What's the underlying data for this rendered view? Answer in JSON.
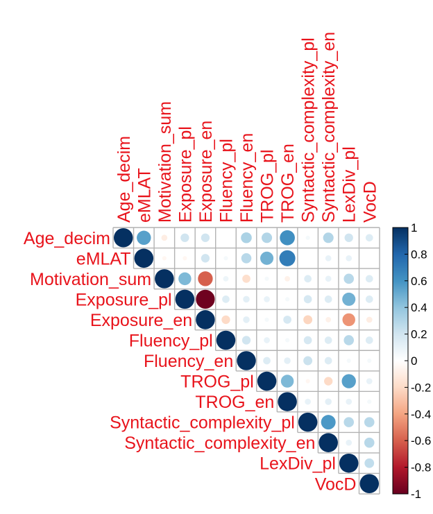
{
  "chart_data": {
    "type": "heatmap",
    "shape": "circle",
    "layout": "upper-triangle",
    "variables": [
      "Age_decim",
      "eMLAT",
      "Motivation_sum",
      "Exposure_pl",
      "Exposure_en",
      "Fluency_pl",
      "Fluency_en",
      "TROG_pl",
      "TROG_en",
      "Syntactic_complexity_pl",
      "Syntactic_complexity_en",
      "LexDiv_pl",
      "VocD"
    ],
    "matrix": [
      [
        1,
        0.55,
        -0.1,
        0.2,
        0.2,
        0.0,
        0.32,
        0.3,
        0.62,
        0.05,
        0.3,
        0.2,
        0.15
      ],
      [
        null,
        1,
        -0.05,
        -0.05,
        0.2,
        0.05,
        0.28,
        0.48,
        0.7,
        0.0,
        0.1,
        0.1,
        0.0
      ],
      [
        null,
        null,
        1,
        0.45,
        -0.6,
        0.08,
        -0.18,
        0.05,
        -0.08,
        0.15,
        0.1,
        0.28,
        0.15
      ],
      [
        null,
        null,
        null,
        1,
        -0.98,
        0.15,
        0.12,
        0.1,
        0.05,
        0.18,
        0.15,
        0.48,
        0.15
      ],
      [
        null,
        null,
        null,
        null,
        1,
        -0.2,
        0.12,
        0.05,
        0.18,
        -0.22,
        -0.08,
        -0.45,
        -0.1
      ],
      [
        null,
        null,
        null,
        null,
        null,
        1,
        0.2,
        0.1,
        0.05,
        0.18,
        0.15,
        0.28,
        0.15
      ],
      [
        null,
        null,
        null,
        null,
        null,
        null,
        1,
        0.15,
        0.12,
        0.22,
        0.15,
        0.05,
        0.05
      ],
      [
        null,
        null,
        null,
        null,
        null,
        null,
        null,
        1,
        0.45,
        -0.05,
        -0.2,
        0.55,
        0.1
      ],
      [
        null,
        null,
        null,
        null,
        null,
        null,
        null,
        null,
        1,
        0.1,
        0.12,
        0.1,
        0.05
      ],
      [
        null,
        null,
        null,
        null,
        null,
        null,
        null,
        null,
        null,
        1,
        0.58,
        0.28,
        0.28
      ],
      [
        null,
        null,
        null,
        null,
        null,
        null,
        null,
        null,
        null,
        null,
        1,
        0.1,
        0.28
      ],
      [
        null,
        null,
        null,
        null,
        null,
        null,
        null,
        null,
        null,
        null,
        null,
        1,
        0.25
      ],
      [
        null,
        null,
        null,
        null,
        null,
        null,
        null,
        null,
        null,
        null,
        null,
        null,
        1
      ]
    ],
    "colorbar": {
      "range": [
        -1,
        1
      ],
      "ticks": [
        "1",
        "0.8",
        "0.6",
        "0.4",
        "0.2",
        "0",
        "-0.2",
        "-0.4",
        "-0.6",
        "-0.8",
        "-1"
      ],
      "colors": {
        "neg_strong": "#67001f",
        "neg_mid": "#d6604d",
        "neg_light": "#fddbc7",
        "zero": "#ffffff",
        "pos_light": "#d1e5f0",
        "pos_mid": "#4393c3",
        "pos_strong": "#053061"
      }
    },
    "label_color": "#e8131b",
    "grid_color": "#b2b2b2"
  }
}
